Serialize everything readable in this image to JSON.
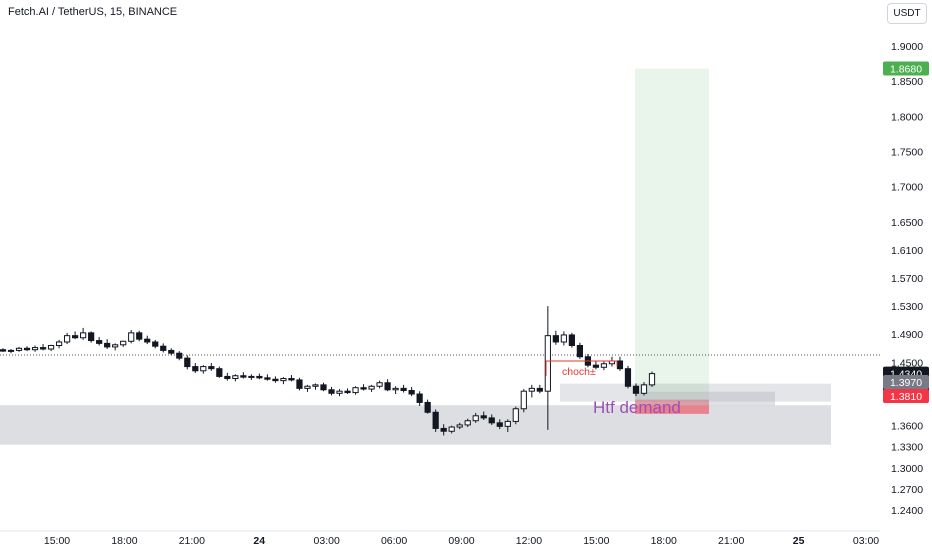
{
  "header": {
    "symbol_title": "Fetch.AI / TetherUS, 15, BINANCE"
  },
  "price_scale": {
    "currency": "USDT"
  },
  "colors": {
    "up_candle": "#ffffff",
    "down_candle": "#131722",
    "target_zone": "#4caf50",
    "stop_zone": "#f23645",
    "demand_zone": "#b2b5be",
    "choch": "#e53935",
    "demand_text": "#9c50b6"
  },
  "chart_data": {
    "type": "candlestick",
    "y_ticks": [
      "1.9000",
      "1.8500",
      "1.8000",
      "1.7500",
      "1.7000",
      "1.6500",
      "1.6100",
      "1.5700",
      "1.5300",
      "1.4900",
      "1.4500",
      "1.4100",
      "1.3600",
      "1.3300",
      "1.3000",
      "1.2700",
      "1.2400"
    ],
    "x_ticks": [
      "15:00",
      "18:00",
      "21:00",
      "24",
      "03:00",
      "06:00",
      "09:00",
      "12:00",
      "15:00",
      "18:00",
      "21:00",
      "25",
      "03:00"
    ],
    "ylim": [
      1.223,
      1.922
    ],
    "price_labels": {
      "target": "1.8680",
      "current": "1.4340",
      "countdown": "10:56",
      "entry": "1.3970",
      "stop": "1.3810"
    },
    "annotations": {
      "choch": "choch±",
      "htf_demand": "Htf demand"
    },
    "zones": {
      "htf_demand": {
        "price_top": 1.389,
        "price_bottom": 1.35
      },
      "long_position": {
        "target": 1.868,
        "entry": 1.397,
        "stop": 1.381
      }
    },
    "candles": [
      [
        1.468,
        1.47,
        1.465,
        1.466
      ],
      [
        1.466,
        1.469,
        1.463,
        1.467
      ],
      [
        1.467,
        1.472,
        1.465,
        1.47
      ],
      [
        1.47,
        1.473,
        1.466,
        1.468
      ],
      [
        1.468,
        1.474,
        1.465,
        1.471
      ],
      [
        1.471,
        1.476,
        1.467,
        1.469
      ],
      [
        1.469,
        1.475,
        1.466,
        1.474
      ],
      [
        1.474,
        1.482,
        1.47,
        1.479
      ],
      [
        1.479,
        1.492,
        1.476,
        1.488
      ],
      [
        1.488,
        1.494,
        1.483,
        1.485
      ],
      [
        1.485,
        1.499,
        1.482,
        1.492
      ],
      [
        1.492,
        1.494,
        1.478,
        1.481
      ],
      [
        1.481,
        1.486,
        1.474,
        1.477
      ],
      [
        1.477,
        1.483,
        1.469,
        1.472
      ],
      [
        1.472,
        1.477,
        1.467,
        1.475
      ],
      [
        1.475,
        1.481,
        1.472,
        1.48
      ],
      [
        1.48,
        1.496,
        1.477,
        1.492
      ],
      [
        1.492,
        1.495,
        1.48,
        1.483
      ],
      [
        1.483,
        1.488,
        1.476,
        1.479
      ],
      [
        1.479,
        1.482,
        1.47,
        1.473
      ],
      [
        1.473,
        1.477,
        1.464,
        1.467
      ],
      [
        1.467,
        1.47,
        1.46,
        1.463
      ],
      [
        1.463,
        1.466,
        1.453,
        1.456
      ],
      [
        1.456,
        1.46,
        1.44,
        1.444
      ],
      [
        1.444,
        1.449,
        1.435,
        1.438
      ],
      [
        1.438,
        1.446,
        1.434,
        1.444
      ],
      [
        1.444,
        1.449,
        1.438,
        1.441
      ],
      [
        1.441,
        1.444,
        1.428,
        1.43
      ],
      [
        1.43,
        1.435,
        1.424,
        1.427
      ],
      [
        1.427,
        1.433,
        1.423,
        1.431
      ],
      [
        1.431,
        1.436,
        1.427,
        1.429
      ],
      [
        1.429,
        1.433,
        1.425,
        1.43
      ],
      [
        1.43,
        1.434,
        1.426,
        1.428
      ],
      [
        1.428,
        1.433,
        1.424,
        1.426
      ],
      [
        1.426,
        1.43,
        1.421,
        1.424
      ],
      [
        1.424,
        1.429,
        1.419,
        1.427
      ],
      [
        1.427,
        1.432,
        1.423,
        1.425
      ],
      [
        1.425,
        1.428,
        1.41,
        1.413
      ],
      [
        1.413,
        1.418,
        1.408,
        1.416
      ],
      [
        1.416,
        1.42,
        1.411,
        1.418
      ],
      [
        1.418,
        1.421,
        1.409,
        1.411
      ],
      [
        1.411,
        1.415,
        1.403,
        1.406
      ],
      [
        1.406,
        1.412,
        1.402,
        1.409
      ],
      [
        1.409,
        1.413,
        1.405,
        1.407
      ],
      [
        1.407,
        1.416,
        1.404,
        1.414
      ],
      [
        1.414,
        1.419,
        1.41,
        1.412
      ],
      [
        1.412,
        1.418,
        1.408,
        1.416
      ],
      [
        1.416,
        1.424,
        1.413,
        1.421
      ],
      [
        1.421,
        1.426,
        1.409,
        1.411
      ],
      [
        1.411,
        1.416,
        1.405,
        1.413
      ],
      [
        1.413,
        1.418,
        1.407,
        1.41
      ],
      [
        1.41,
        1.415,
        1.402,
        1.405
      ],
      [
        1.405,
        1.409,
        1.388,
        1.393
      ],
      [
        1.393,
        1.397,
        1.377,
        1.379
      ],
      [
        1.379,
        1.383,
        1.351,
        1.356
      ],
      [
        1.356,
        1.362,
        1.346,
        1.352
      ],
      [
        1.352,
        1.36,
        1.349,
        1.358
      ],
      [
        1.358,
        1.364,
        1.355,
        1.361
      ],
      [
        1.361,
        1.37,
        1.358,
        1.367
      ],
      [
        1.367,
        1.378,
        1.364,
        1.374
      ],
      [
        1.374,
        1.38,
        1.368,
        1.371
      ],
      [
        1.371,
        1.376,
        1.361,
        1.364
      ],
      [
        1.364,
        1.369,
        1.355,
        1.359
      ],
      [
        1.359,
        1.369,
        1.351,
        1.366
      ],
      [
        1.366,
        1.387,
        1.362,
        1.384
      ],
      [
        1.384,
        1.412,
        1.379,
        1.409
      ],
      [
        1.409,
        1.418,
        1.4,
        1.413
      ],
      [
        1.413,
        1.418,
        1.406,
        1.409
      ],
      [
        1.409,
        1.53,
        1.354,
        1.488
      ],
      [
        1.488,
        1.495,
        1.475,
        1.479
      ],
      [
        1.479,
        1.494,
        1.474,
        1.489
      ],
      [
        1.489,
        1.492,
        1.471,
        1.474
      ],
      [
        1.474,
        1.478,
        1.455,
        1.458
      ],
      [
        1.458,
        1.462,
        1.443,
        1.446
      ],
      [
        1.446,
        1.452,
        1.44,
        1.443
      ],
      [
        1.443,
        1.451,
        1.439,
        1.448
      ],
      [
        1.448,
        1.458,
        1.444,
        1.452
      ],
      [
        1.452,
        1.458,
        1.438,
        1.441
      ],
      [
        1.441,
        1.445,
        1.413,
        1.416
      ],
      [
        1.416,
        1.42,
        1.402,
        1.406
      ],
      [
        1.406,
        1.422,
        1.403,
        1.418
      ],
      [
        1.418,
        1.437,
        1.415,
        1.434
      ]
    ]
  }
}
